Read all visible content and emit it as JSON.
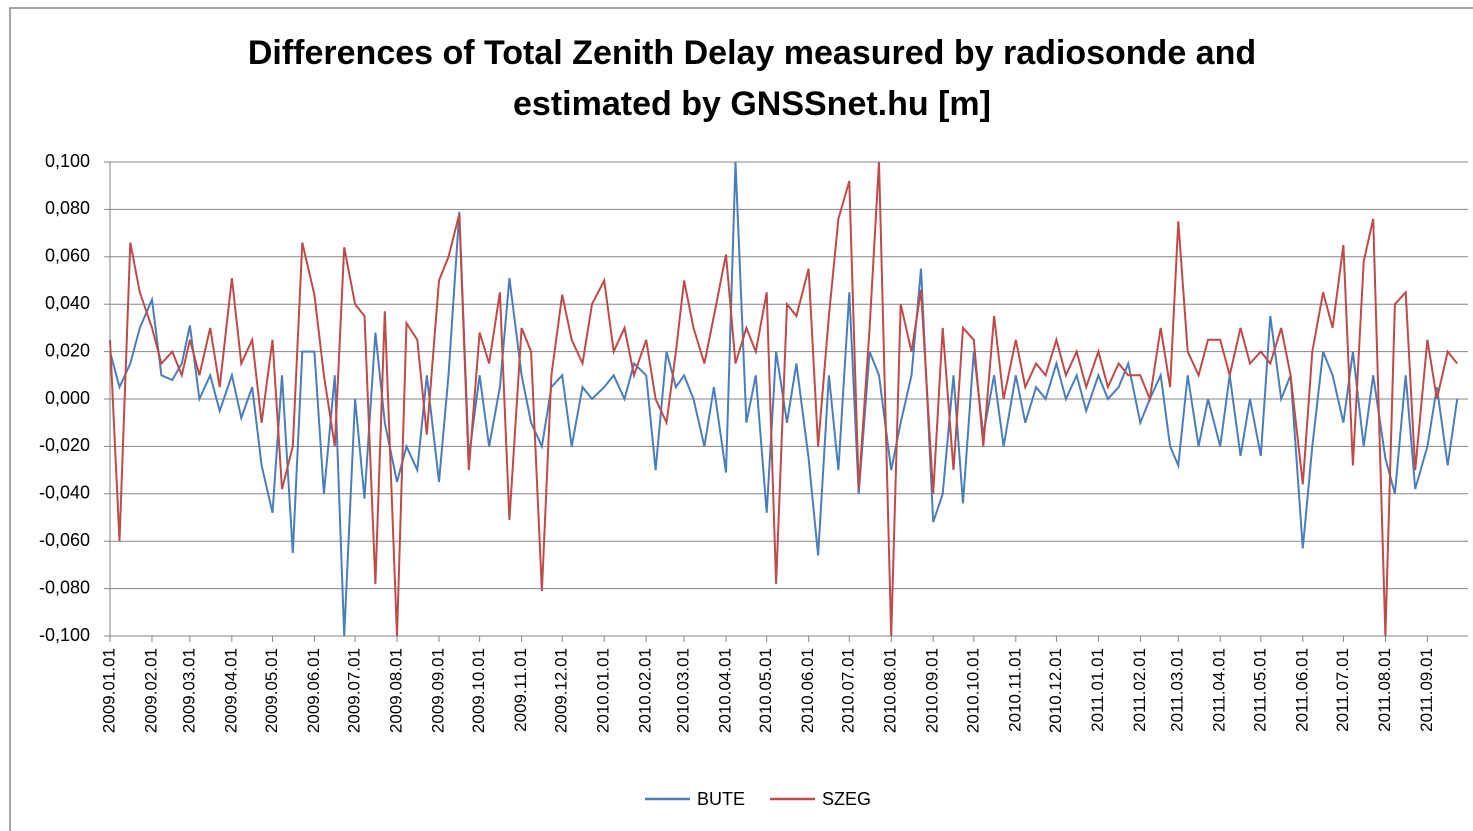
{
  "chart_data": {
    "type": "line",
    "title": [
      "Differences of Total Zenith Delay measured by radiosonde and",
      "estimated by GNSSnet.hu [m]"
    ],
    "x": [
      "2009.01.01",
      "2009.01.08",
      "2009.01.16",
      "2009.01.23",
      "2009.02.01",
      "2009.02.08",
      "2009.02.16",
      "2009.02.23",
      "2009.03.01",
      "2009.03.08",
      "2009.03.16",
      "2009.03.23",
      "2009.04.01",
      "2009.04.08",
      "2009.04.16",
      "2009.04.23",
      "2009.05.01",
      "2009.05.08",
      "2009.05.16",
      "2009.05.23",
      "2009.06.01",
      "2009.06.08",
      "2009.06.16",
      "2009.06.23",
      "2009.07.01",
      "2009.07.08",
      "2009.07.16",
      "2009.07.23",
      "2009.08.01",
      "2009.08.08",
      "2009.08.16",
      "2009.08.23",
      "2009.09.01",
      "2009.09.08",
      "2009.09.16",
      "2009.09.23",
      "2009.10.01",
      "2009.10.08",
      "2009.10.16",
      "2009.10.23",
      "2009.11.01",
      "2009.11.08",
      "2009.11.16",
      "2009.11.23",
      "2009.12.01",
      "2009.12.08",
      "2009.12.16",
      "2009.12.23",
      "2010.01.01",
      "2010.01.08",
      "2010.01.16",
      "2010.01.23",
      "2010.02.01",
      "2010.02.08",
      "2010.02.16",
      "2010.02.23",
      "2010.03.01",
      "2010.03.08",
      "2010.03.16",
      "2010.03.23",
      "2010.04.01",
      "2010.04.08",
      "2010.04.16",
      "2010.04.23",
      "2010.05.01",
      "2010.05.08",
      "2010.05.16",
      "2010.05.23",
      "2010.06.01",
      "2010.06.08",
      "2010.06.16",
      "2010.06.23",
      "2010.07.01",
      "2010.07.08",
      "2010.07.16",
      "2010.07.23",
      "2010.08.01",
      "2010.08.08",
      "2010.08.16",
      "2010.08.23",
      "2010.09.01",
      "2010.09.08",
      "2010.09.16",
      "2010.09.23",
      "2010.10.01",
      "2010.10.08",
      "2010.10.16",
      "2010.10.23",
      "2010.11.01",
      "2010.11.08",
      "2010.11.16",
      "2010.11.23",
      "2010.12.01",
      "2010.12.08",
      "2010.12.16",
      "2010.12.23",
      "2011.01.01",
      "2011.01.08",
      "2011.01.16",
      "2011.01.23",
      "2011.02.01",
      "2011.02.08",
      "2011.02.16",
      "2011.02.23",
      "2011.03.01",
      "2011.03.08",
      "2011.03.16",
      "2011.03.23",
      "2011.04.01",
      "2011.04.08",
      "2011.04.16",
      "2011.04.23",
      "2011.05.01",
      "2011.05.08",
      "2011.05.16",
      "2011.05.23",
      "2011.06.01",
      "2011.06.08",
      "2011.06.16",
      "2011.06.23",
      "2011.07.01",
      "2011.07.08",
      "2011.07.16",
      "2011.07.23",
      "2011.08.01",
      "2011.08.08",
      "2011.08.16",
      "2011.08.23",
      "2011.09.01",
      "2011.09.08",
      "2011.09.16",
      "2011.09.23"
    ],
    "series": [
      {
        "name": "BUTE",
        "color": "#4a7ebb",
        "values": [
          0.02,
          0.005,
          0.015,
          0.03,
          0.042,
          0.01,
          0.008,
          0.015,
          0.031,
          0.0,
          0.01,
          -0.005,
          0.01,
          -0.008,
          0.005,
          -0.028,
          -0.048,
          0.01,
          -0.065,
          0.02,
          0.02,
          -0.04,
          0.01,
          -0.1,
          0.0,
          -0.042,
          0.028,
          -0.01,
          -0.035,
          -0.02,
          -0.03,
          0.01,
          -0.035,
          0.01,
          0.079,
          -0.025,
          0.01,
          -0.02,
          0.005,
          0.051,
          0.01,
          -0.01,
          -0.02,
          0.005,
          0.01,
          -0.02,
          0.005,
          0.0,
          0.005,
          0.01,
          0.0,
          0.015,
          0.01,
          -0.03,
          0.02,
          0.005,
          0.01,
          0.0,
          -0.02,
          0.005,
          -0.031,
          0.1,
          -0.01,
          0.01,
          -0.048,
          0.02,
          -0.01,
          0.015,
          -0.025,
          -0.066,
          0.01,
          -0.03,
          0.045,
          -0.04,
          0.02,
          0.01,
          -0.03,
          -0.01,
          0.01,
          0.055,
          -0.052,
          -0.04,
          0.01,
          -0.044,
          0.02,
          -0.015,
          0.01,
          -0.02,
          0.01,
          -0.01,
          0.005,
          0.0,
          0.015,
          0.0,
          0.01,
          -0.005,
          0.01,
          0.0,
          0.005,
          0.015,
          -0.01,
          0.0,
          0.01,
          -0.02,
          -0.028,
          0.01,
          -0.02,
          0.0,
          -0.02,
          0.01,
          -0.024,
          0.0,
          -0.024,
          0.035,
          0.0,
          0.01,
          -0.063,
          -0.02,
          0.02,
          0.01,
          -0.01,
          0.02,
          -0.02,
          0.01,
          -0.025,
          -0.04,
          0.01,
          -0.038,
          -0.02,
          0.005,
          -0.028,
          0.0
        ]
      },
      {
        "name": "SZEG",
        "color": "#be4b48",
        "values": [
          0.025,
          -0.06,
          0.066,
          0.045,
          0.03,
          0.015,
          0.02,
          0.01,
          0.025,
          0.01,
          0.03,
          0.005,
          0.051,
          0.015,
          0.025,
          -0.01,
          0.025,
          -0.038,
          -0.02,
          0.066,
          0.044,
          0.01,
          -0.02,
          0.064,
          0.04,
          0.035,
          -0.078,
          0.037,
          -0.1,
          0.032,
          0.025,
          -0.015,
          0.05,
          0.06,
          0.078,
          -0.03,
          0.028,
          0.015,
          0.045,
          -0.051,
          0.03,
          0.02,
          -0.081,
          0.01,
          0.044,
          0.025,
          0.015,
          0.04,
          0.05,
          0.02,
          0.03,
          0.01,
          0.025,
          0.0,
          -0.01,
          0.02,
          0.05,
          0.03,
          0.015,
          0.035,
          0.061,
          0.015,
          0.03,
          0.02,
          0.045,
          -0.078,
          0.04,
          0.035,
          0.055,
          -0.02,
          0.035,
          0.076,
          0.092,
          -0.038,
          0.03,
          0.1,
          -0.1,
          0.04,
          0.02,
          0.046,
          -0.04,
          0.03,
          -0.03,
          0.03,
          0.025,
          -0.02,
          0.035,
          0.0,
          0.025,
          0.005,
          0.015,
          0.01,
          0.025,
          0.01,
          0.02,
          0.005,
          0.02,
          0.005,
          0.015,
          0.01,
          0.01,
          0.0,
          0.03,
          0.005,
          0.075,
          0.02,
          0.01,
          0.025,
          0.025,
          0.01,
          0.03,
          0.015,
          0.02,
          0.015,
          0.03,
          0.01,
          -0.036,
          0.02,
          0.045,
          0.03,
          0.065,
          -0.028,
          0.058,
          0.076,
          -0.1,
          0.04,
          0.045,
          -0.03,
          0.025,
          0.0,
          0.02,
          0.015
        ]
      }
    ],
    "xlim": [
      "2009.01.01",
      "2011.10.01"
    ],
    "xticks": [
      "2009.01.01",
      "2009.02.01",
      "2009.03.01",
      "2009.04.01",
      "2009.05.01",
      "2009.06.01",
      "2009.07.01",
      "2009.08.01",
      "2009.09.01",
      "2009.10.01",
      "2009.11.01",
      "2009.12.01",
      "2010.01.01",
      "2010.02.01",
      "2010.03.01",
      "2010.04.01",
      "2010.05.01",
      "2010.06.01",
      "2010.07.01",
      "2010.08.01",
      "2010.09.01",
      "2010.10.01",
      "2010.11.01",
      "2010.12.01",
      "2011.01.01",
      "2011.02.01",
      "2011.03.01",
      "2011.04.01",
      "2011.05.01",
      "2011.06.01",
      "2011.07.01",
      "2011.08.01",
      "2011.09.01"
    ],
    "ylim": [
      -0.1,
      0.1
    ],
    "yticks": [
      {
        "value": 0.1,
        "label": "0,100"
      },
      {
        "value": 0.08,
        "label": "0,080"
      },
      {
        "value": 0.06,
        "label": "0,060"
      },
      {
        "value": 0.04,
        "label": "0,040"
      },
      {
        "value": 0.02,
        "label": "0,020"
      },
      {
        "value": 0,
        "label": "0,000"
      },
      {
        "value": -0.02,
        "label": "-0,020"
      },
      {
        "value": -0.04,
        "label": "-0,040"
      },
      {
        "value": -0.06,
        "label": "-0,060"
      },
      {
        "value": -0.08,
        "label": "-0,080"
      },
      {
        "value": -0.1,
        "label": "-0,100"
      }
    ],
    "grid": true,
    "legend": "bottom"
  }
}
